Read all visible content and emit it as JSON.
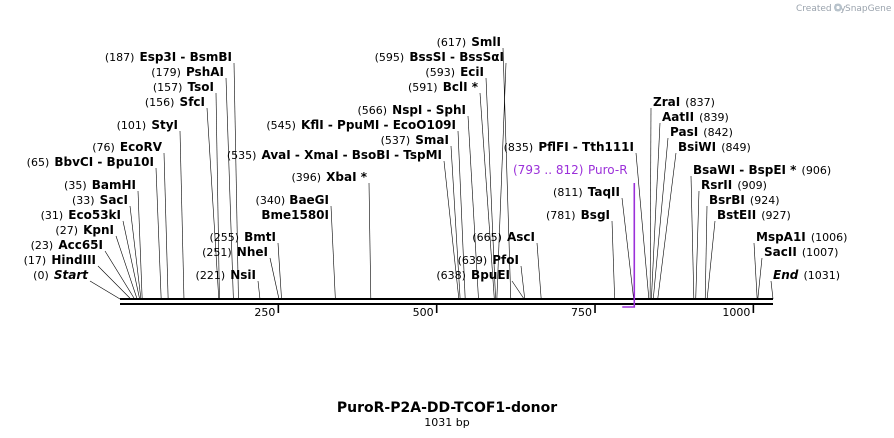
{
  "brand": {
    "created_by": "Created by",
    "app_name": "SnapGene"
  },
  "map": {
    "title": "PuroR-P2A-DD-TCOF1-donor",
    "length_label": "1031 bp",
    "total_bp": 1031,
    "ticks": [
      "250",
      "500",
      "750",
      "1000"
    ],
    "feature": {
      "range": "(793 .. 812)",
      "name": "Puro-R",
      "color": "#9b30d9"
    }
  },
  "sites": [
    {
      "pos": "(0)",
      "bp": 0,
      "names": [
        "Start"
      ],
      "italic": true
    },
    {
      "pos": "(17)",
      "bp": 17,
      "names": [
        "HindIII"
      ]
    },
    {
      "pos": "(23)",
      "bp": 23,
      "names": [
        "Acc65I"
      ]
    },
    {
      "pos": "(27)",
      "bp": 27,
      "names": [
        "KpnI"
      ]
    },
    {
      "pos": "(31)",
      "bp": 31,
      "names": [
        "Eco53kI"
      ]
    },
    {
      "pos": "(33)",
      "bp": 33,
      "names": [
        "SacI"
      ]
    },
    {
      "pos": "(35)",
      "bp": 35,
      "names": [
        "BamHI"
      ]
    },
    {
      "pos": "(65)",
      "bp": 65,
      "names": [
        "BbvCI",
        "Bpu10I"
      ]
    },
    {
      "pos": "(76)",
      "bp": 76,
      "names": [
        "EcoRV"
      ]
    },
    {
      "pos": "(101)",
      "bp": 101,
      "names": [
        "StyI"
      ]
    },
    {
      "pos": "(156)",
      "bp": 156,
      "names": [
        "SfcI"
      ]
    },
    {
      "pos": "(157)",
      "bp": 157,
      "names": [
        "TsoI"
      ]
    },
    {
      "pos": "(179)",
      "bp": 179,
      "names": [
        "PshAI"
      ]
    },
    {
      "pos": "(187)",
      "bp": 187,
      "names": [
        "Esp3I",
        "BsmBI"
      ]
    },
    {
      "pos": "(221)",
      "bp": 221,
      "names": [
        "NsiI"
      ]
    },
    {
      "pos": "(251)",
      "bp": 251,
      "names": [
        "NheI"
      ]
    },
    {
      "pos": "(255)",
      "bp": 255,
      "names": [
        "BmtI"
      ]
    },
    {
      "pos": "(535)",
      "bp": 535,
      "names": [
        "AvaI",
        "XmaI",
        "BsoBI",
        "TspMI"
      ]
    },
    {
      "pos": "(545)",
      "bp": 545,
      "names": [
        "KflI",
        "PpuMI",
        "EcoO109I"
      ]
    },
    {
      "pos": "(340)",
      "bp": 340,
      "names": [
        "BaeGI",
        "Bme1580I"
      ],
      "stacked": true
    },
    {
      "pos": "(396)",
      "bp": 396,
      "names": [
        "XbaI *"
      ]
    },
    {
      "pos": "(537)",
      "bp": 537,
      "names": [
        "SmaI"
      ]
    },
    {
      "pos": "(566)",
      "bp": 566,
      "names": [
        "NspI",
        "SphI"
      ]
    },
    {
      "pos": "(591)",
      "bp": 591,
      "names": [
        "BclI *"
      ]
    },
    {
      "pos": "(593)",
      "bp": 593,
      "names": [
        "EciI"
      ]
    },
    {
      "pos": "(595)",
      "bp": 595,
      "names": [
        "BssSI",
        "BssSαI"
      ]
    },
    {
      "pos": "(617)",
      "bp": 617,
      "names": [
        "SmlI"
      ]
    },
    {
      "pos": "(638)",
      "bp": 638,
      "names": [
        "BpuEI"
      ]
    },
    {
      "pos": "(639)",
      "bp": 639,
      "names": [
        "PfoI"
      ]
    },
    {
      "pos": "(665)",
      "bp": 665,
      "names": [
        "AscI"
      ]
    },
    {
      "pos": "(835)",
      "bp": 835,
      "names": [
        "PflFI",
        "Tth111I"
      ]
    },
    {
      "pos": "(781)",
      "bp": 781,
      "names": [
        "BsgI"
      ]
    },
    {
      "pos": "(811)",
      "bp": 811,
      "names": [
        "TaqII"
      ]
    },
    {
      "pos": "(837)",
      "bp": 837,
      "names": [
        "ZraI"
      ]
    },
    {
      "pos": "(839)",
      "bp": 839,
      "names": [
        "AatII"
      ]
    },
    {
      "pos": "(842)",
      "bp": 842,
      "names": [
        "PasI"
      ]
    },
    {
      "pos": "(849)",
      "bp": 849,
      "names": [
        "BsiWI"
      ]
    },
    {
      "pos": "(906)",
      "bp": 906,
      "names": [
        "BsaWI",
        "BspEI *"
      ]
    },
    {
      "pos": "(909)",
      "bp": 909,
      "names": [
        "RsrII"
      ]
    },
    {
      "pos": "(924)",
      "bp": 924,
      "names": [
        "BsrBI"
      ]
    },
    {
      "pos": "(927)",
      "bp": 927,
      "names": [
        "BstEII"
      ]
    },
    {
      "pos": "(1006)",
      "bp": 1006,
      "names": [
        "MspA1I"
      ]
    },
    {
      "pos": "(1007)",
      "bp": 1007,
      "names": [
        "SacII"
      ]
    },
    {
      "pos": "(1031)",
      "bp": 1031,
      "names": [
        "End"
      ],
      "italic": true
    }
  ]
}
